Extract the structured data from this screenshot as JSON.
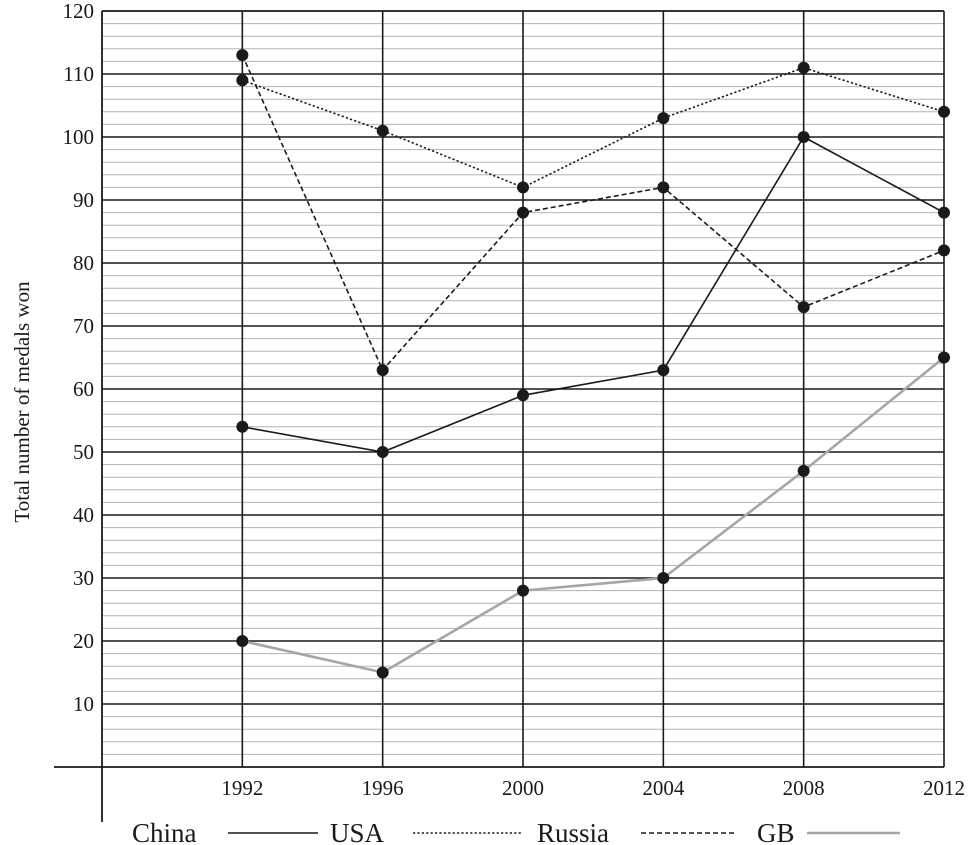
{
  "chart_data": {
    "type": "line",
    "title": "",
    "xlabel": "",
    "ylabel": "Total number of medals won",
    "x": [
      "1992",
      "1996",
      "2000",
      "2004",
      "2008",
      "2012"
    ],
    "xlim": [
      1988,
      2012
    ],
    "ylim": [
      0,
      120
    ],
    "yticks": [
      10,
      20,
      30,
      40,
      50,
      60,
      70,
      80,
      90,
      100,
      110,
      120
    ],
    "grid": true,
    "legend_position": "bottom",
    "series": [
      {
        "name": "China",
        "style": "solid",
        "color": "#1a1a1a",
        "values": [
          54,
          50,
          59,
          63,
          100,
          88
        ]
      },
      {
        "name": "USA",
        "style": "dotted",
        "color": "#1a1a1a",
        "values": [
          109,
          101,
          92,
          103,
          111,
          104
        ]
      },
      {
        "name": "Russia",
        "style": "dashed",
        "color": "#1a1a1a",
        "values": [
          113,
          63,
          88,
          92,
          73,
          82
        ]
      },
      {
        "name": "GB",
        "style": "solid",
        "color": "#a6a6a6",
        "values": [
          20,
          15,
          28,
          30,
          47,
          65
        ]
      }
    ]
  }
}
